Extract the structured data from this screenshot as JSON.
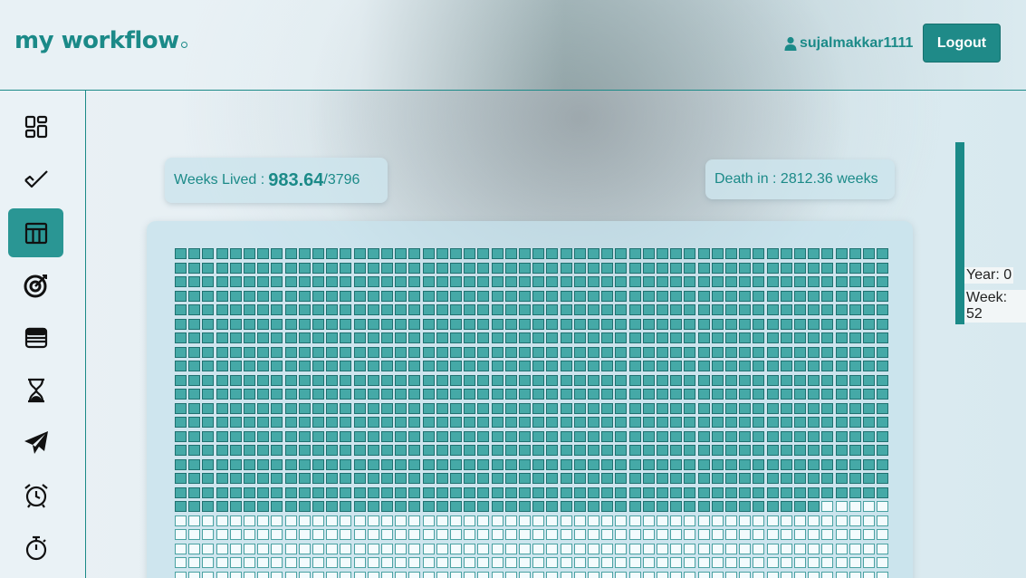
{
  "app": {
    "logo": "my workflow"
  },
  "header": {
    "username": "sujalmakkar1111",
    "logout_label": "Logout"
  },
  "sidebar": {
    "items": [
      {
        "name": "dashboard",
        "icon": "dashboard-icon",
        "active": false
      },
      {
        "name": "tasks",
        "icon": "check-icon",
        "active": false
      },
      {
        "name": "life-calendar",
        "icon": "calendar-grid-icon",
        "active": true
      },
      {
        "name": "goals",
        "icon": "target-icon",
        "active": false
      },
      {
        "name": "notes",
        "icon": "notepad-icon",
        "active": false
      },
      {
        "name": "timer",
        "icon": "hourglass-icon",
        "active": false
      },
      {
        "name": "send",
        "icon": "paper-plane-icon",
        "active": false
      },
      {
        "name": "alarm",
        "icon": "alarm-clock-icon",
        "active": false
      },
      {
        "name": "stopwatch",
        "icon": "stopwatch-icon",
        "active": false
      }
    ]
  },
  "stats": {
    "weeks_lived_label": "Weeks Lived :",
    "weeks_lived_value": "983.64",
    "weeks_total": "/3796",
    "death_label": "Death in : 2812.36 weeks"
  },
  "grid": {
    "weeks_per_row": 52,
    "visible_rows": 24,
    "lived_full_rows": 18,
    "lived_in_partial_row": 47
  },
  "scale": {
    "year_label": "Year: 0",
    "week_label": "Week: 52"
  },
  "colors": {
    "accent": "#1b8a88",
    "lived_cell": "#45a9a7",
    "future_cell": "#f3fbfd"
  }
}
